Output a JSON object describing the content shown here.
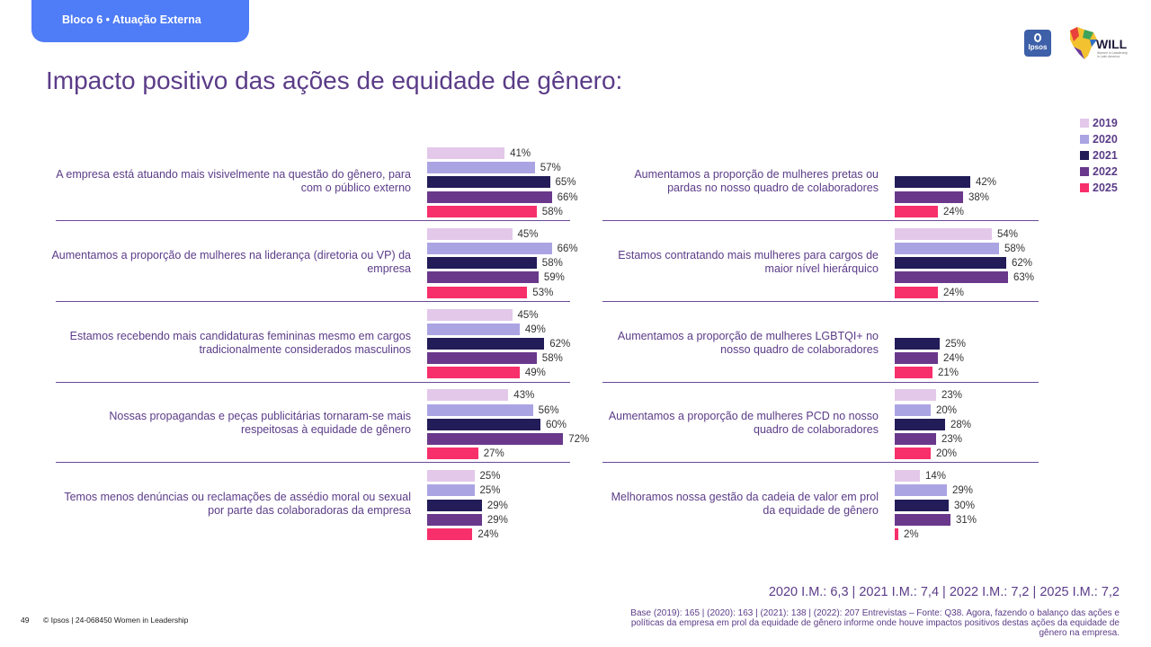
{
  "header": {
    "tag": "Bloco 6 • Atuação Externa",
    "title": "Impacto positivo das ações de equidade de gênero:",
    "logo_ipsos": "Ipsos",
    "logo_will": "WILL",
    "logo_will_sub": "Women in Leadership in Latin America"
  },
  "colors": {
    "2019": "#e3c8ea",
    "2020": "#aba4e3",
    "2021": "#221c58",
    "2022": "#69388b",
    "2025": "#f72f6b"
  },
  "chart_data": {
    "type": "bar",
    "orientation": "horizontal",
    "unit": "%",
    "legend": [
      "2019",
      "2020",
      "2021",
      "2022",
      "2025"
    ],
    "xlim": [
      0,
      100
    ],
    "panels": [
      {
        "name": "left",
        "categories": [
          {
            "label": "A empresa está atuando mais visivelmente na questão do gênero, para com o público externo",
            "values": [
              {
                "year": "2019",
                "value": 41
              },
              {
                "year": "2020",
                "value": 57
              },
              {
                "year": "2021",
                "value": 65
              },
              {
                "year": "2022",
                "value": 66
              },
              {
                "year": "2025",
                "value": 58
              }
            ]
          },
          {
            "label": "Aumentamos a proporção de mulheres na liderança (diretoria ou VP) da empresa",
            "values": [
              {
                "year": "2019",
                "value": 45
              },
              {
                "year": "2020",
                "value": 66
              },
              {
                "year": "2021",
                "value": 58
              },
              {
                "year": "2022",
                "value": 59
              },
              {
                "year": "2025",
                "value": 53
              }
            ]
          },
          {
            "label": "Estamos recebendo mais candidaturas femininas mesmo em cargos tradicionalmente considerados masculinos",
            "values": [
              {
                "year": "2019",
                "value": 45
              },
              {
                "year": "2020",
                "value": 49
              },
              {
                "year": "2021",
                "value": 62
              },
              {
                "year": "2022",
                "value": 58
              },
              {
                "year": "2025",
                "value": 49
              }
            ]
          },
          {
            "label": "Nossas propagandas e peças publicitárias tornaram-se mais respeitosas à equidade de gênero",
            "values": [
              {
                "year": "2019",
                "value": 43
              },
              {
                "year": "2020",
                "value": 56
              },
              {
                "year": "2021",
                "value": 60
              },
              {
                "year": "2022",
                "value": 72
              },
              {
                "year": "2025",
                "value": 27
              }
            ]
          },
          {
            "label": "Temos menos denúncias ou reclamações de assédio moral ou sexual por parte das colaboradoras da empresa",
            "values": [
              {
                "year": "2019",
                "value": 25
              },
              {
                "year": "2020",
                "value": 25
              },
              {
                "year": "2021",
                "value": 29
              },
              {
                "year": "2022",
                "value": 29
              },
              {
                "year": "2025",
                "value": 24
              }
            ]
          }
        ]
      },
      {
        "name": "right",
        "categories": [
          {
            "label": "Aumentamos a proporção de mulheres pretas ou pardas no nosso quadro de colaboradores",
            "values": [
              {
                "year": "2021",
                "value": 42
              },
              {
                "year": "2022",
                "value": 38
              },
              {
                "year": "2025",
                "value": 24
              }
            ]
          },
          {
            "label": "Estamos contratando mais mulheres para cargos de maior nível hierárquico",
            "values": [
              {
                "year": "2019",
                "value": 54
              },
              {
                "year": "2020",
                "value": 58
              },
              {
                "year": "2021",
                "value": 62
              },
              {
                "year": "2022",
                "value": 63
              },
              {
                "year": "2025",
                "value": 24
              }
            ]
          },
          {
            "label": "Aumentamos a proporção de mulheres LGBTQI+ no nosso quadro de colaboradores",
            "values": [
              {
                "year": "2021",
                "value": 25
              },
              {
                "year": "2022",
                "value": 24
              },
              {
                "year": "2025",
                "value": 21
              }
            ]
          },
          {
            "label": "Aumentamos a proporção de mulheres PCD no nosso quadro de colaboradores",
            "values": [
              {
                "year": "2019",
                "value": 23
              },
              {
                "year": "2020",
                "value": 20
              },
              {
                "year": "2021",
                "value": 28
              },
              {
                "year": "2022",
                "value": 23
              },
              {
                "year": "2025",
                "value": 20
              }
            ]
          },
          {
            "label": "Melhoramos nossa gestão da cadeia de valor em prol da equidade de gênero",
            "values": [
              {
                "year": "2019",
                "value": 14
              },
              {
                "year": "2020",
                "value": 29
              },
              {
                "year": "2021",
                "value": 30
              },
              {
                "year": "2022",
                "value": 31
              },
              {
                "year": "2025",
                "value": 2
              }
            ]
          }
        ]
      }
    ]
  },
  "footer": {
    "im_line": "2020 I.M.: 6,3 | 2021 I.M.: 7,4 | 2022 I.M.: 7,2 | 2025 I.M.: 7,2",
    "base": "Base (2019): 165 | (2020): 163 | (2021): 138 | (2022): 207 Entrevistas – Fonte: Q38. Agora, fazendo o balanço das ações e políticas da empresa em prol da equidade de gênero informe onde houve impactos positivos destas ações da equidade de gênero na empresa.",
    "page": "49",
    "copyright": "© Ipsos | 24-068450 Women in Leadership"
  }
}
